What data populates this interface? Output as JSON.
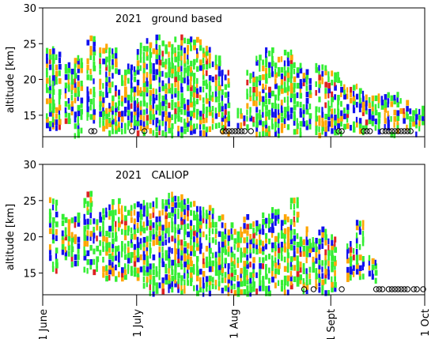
{
  "palette": {
    "green": "#33ee33",
    "blue": "#1111ee",
    "orange": "#ffa500",
    "red": "#dd2222",
    "frame": "#000000"
  },
  "chart_data": [
    {
      "type": "heatmap",
      "title": "2021   ground based",
      "xlabel": "",
      "ylabel": "altitude [km]",
      "xlim": [
        "2021-06-01",
        "2021-10-01"
      ],
      "ylim": [
        12,
        30
      ],
      "yticks": [
        15,
        20,
        25,
        30
      ],
      "xticks": [
        "2021-06-01",
        "2021-07-01",
        "2021-08-01",
        "2021-09-01",
        "2021-10-01"
      ],
      "xtick_labels": [
        "",
        "",
        "",
        "",
        ""
      ],
      "grid": false,
      "colors": [
        "green",
        "blue",
        "orange",
        "red"
      ],
      "observations": [
        {
          "date": "2021-06-02",
          "bottom": 13,
          "top": 24.5
        },
        {
          "date": "2021-06-04",
          "bottom": 13,
          "top": 24
        },
        {
          "date": "2021-06-08",
          "bottom": 14,
          "top": 22
        },
        {
          "date": "2021-06-11",
          "bottom": 12,
          "top": 23
        },
        {
          "date": "2021-06-15",
          "bottom": 14,
          "top": 26
        },
        {
          "date": "2021-06-19",
          "bottom": 13,
          "top": 24.5
        },
        {
          "date": "2021-06-22",
          "bottom": 12,
          "top": 24.5
        },
        {
          "date": "2021-06-25",
          "bottom": 12,
          "top": 21
        },
        {
          "date": "2021-06-28",
          "bottom": 13,
          "top": 22
        },
        {
          "date": "2021-07-01",
          "bottom": 12,
          "top": 25
        },
        {
          "date": "2021-07-04",
          "bottom": 12,
          "top": 25.5
        },
        {
          "date": "2021-07-07",
          "bottom": 12,
          "top": 26
        },
        {
          "date": "2021-07-10",
          "bottom": 12,
          "top": 25
        },
        {
          "date": "2021-07-13",
          "bottom": 12,
          "top": 26
        },
        {
          "date": "2021-07-16",
          "bottom": 12,
          "top": 26
        },
        {
          "date": "2021-07-19",
          "bottom": 12,
          "top": 25.5
        },
        {
          "date": "2021-07-22",
          "bottom": 12,
          "top": 25
        },
        {
          "date": "2021-07-25",
          "bottom": 13,
          "top": 23
        },
        {
          "date": "2021-07-28",
          "bottom": 12,
          "top": 21
        },
        {
          "date": "2021-08-02",
          "bottom": 13,
          "top": 16
        },
        {
          "date": "2021-08-05",
          "bottom": 13,
          "top": 21
        },
        {
          "date": "2021-08-08",
          "bottom": 12,
          "top": 23
        },
        {
          "date": "2021-08-11",
          "bottom": 12,
          "top": 24
        },
        {
          "date": "2021-08-14",
          "bottom": 12,
          "top": 23
        },
        {
          "date": "2021-08-17",
          "bottom": 13,
          "top": 24
        },
        {
          "date": "2021-08-20",
          "bottom": 12,
          "top": 22
        },
        {
          "date": "2021-08-23",
          "bottom": 13,
          "top": 21
        },
        {
          "date": "2021-08-27",
          "bottom": 12,
          "top": 22
        },
        {
          "date": "2021-08-30",
          "bottom": 12,
          "top": 22
        },
        {
          "date": "2021-09-02",
          "bottom": 12,
          "top": 21
        },
        {
          "date": "2021-09-05",
          "bottom": 13,
          "top": 19
        },
        {
          "date": "2021-09-08",
          "bottom": 12,
          "top": 19
        },
        {
          "date": "2021-09-11",
          "bottom": 12,
          "top": 18
        },
        {
          "date": "2021-09-14",
          "bottom": 12,
          "top": 18
        },
        {
          "date": "2021-09-17",
          "bottom": 13,
          "top": 18
        },
        {
          "date": "2021-09-20",
          "bottom": 12,
          "top": 18
        },
        {
          "date": "2021-09-23",
          "bottom": 13,
          "top": 17
        },
        {
          "date": "2021-09-26",
          "bottom": 12,
          "top": 16
        },
        {
          "date": "2021-09-29",
          "bottom": 13,
          "top": 16
        }
      ],
      "no_data_dates": [
        "2021-06-16",
        "2021-06-17",
        "2021-06-29",
        "2021-07-03",
        "2021-07-28",
        "2021-07-29",
        "2021-07-30",
        "2021-07-31",
        "2021-08-01",
        "2021-08-02",
        "2021-08-03",
        "2021-08-04",
        "2021-08-06",
        "2021-09-03",
        "2021-09-04",
        "2021-09-11",
        "2021-09-12",
        "2021-09-13",
        "2021-09-17",
        "2021-09-18",
        "2021-09-19",
        "2021-09-20",
        "2021-09-21",
        "2021-09-22",
        "2021-09-23",
        "2021-09-24",
        "2021-09-25",
        "2021-09-26"
      ]
    },
    {
      "type": "heatmap",
      "title": "2021   CALIOP",
      "xlabel": "",
      "ylabel": "altitude [km]",
      "xlim": [
        "2021-06-01",
        "2021-10-01"
      ],
      "ylim": [
        12,
        30
      ],
      "yticks": [
        15,
        20,
        25,
        30
      ],
      "xticks": [
        "2021-06-01",
        "2021-07-01",
        "2021-08-01",
        "2021-09-01",
        "2021-10-01"
      ],
      "xtick_labels": [
        "1 June",
        "1 July",
        "1 Aug",
        "1 Sept",
        "1 Oct"
      ],
      "grid": false,
      "colors": [
        "green",
        "blue",
        "orange",
        "red"
      ],
      "observations": [
        {
          "date": "2021-06-03",
          "bottom": 15,
          "top": 25
        },
        {
          "date": "2021-06-07",
          "bottom": 17,
          "top": 23
        },
        {
          "date": "2021-06-10",
          "bottom": 16,
          "top": 23
        },
        {
          "date": "2021-06-14",
          "bottom": 15,
          "top": 26
        },
        {
          "date": "2021-06-17",
          "bottom": 15,
          "top": 24
        },
        {
          "date": "2021-06-20",
          "bottom": 14,
          "top": 24
        },
        {
          "date": "2021-06-23",
          "bottom": 14,
          "top": 25
        },
        {
          "date": "2021-06-26",
          "bottom": 14,
          "top": 24
        },
        {
          "date": "2021-06-29",
          "bottom": 14,
          "top": 25
        },
        {
          "date": "2021-07-02",
          "bottom": 13,
          "top": 25
        },
        {
          "date": "2021-07-05",
          "bottom": 12,
          "top": 26
        },
        {
          "date": "2021-07-08",
          "bottom": 12,
          "top": 25
        },
        {
          "date": "2021-07-11",
          "bottom": 12,
          "top": 26
        },
        {
          "date": "2021-07-14",
          "bottom": 12,
          "top": 26
        },
        {
          "date": "2021-07-17",
          "bottom": 12,
          "top": 25
        },
        {
          "date": "2021-07-20",
          "bottom": 12,
          "top": 24
        },
        {
          "date": "2021-07-23",
          "bottom": 12,
          "top": 24
        },
        {
          "date": "2021-07-26",
          "bottom": 12,
          "top": 23
        },
        {
          "date": "2021-07-29",
          "bottom": 12,
          "top": 22
        },
        {
          "date": "2021-08-01",
          "bottom": 12,
          "top": 21
        },
        {
          "date": "2021-08-04",
          "bottom": 12,
          "top": 23
        },
        {
          "date": "2021-08-07",
          "bottom": 12,
          "top": 22
        },
        {
          "date": "2021-08-10",
          "bottom": 12,
          "top": 23
        },
        {
          "date": "2021-08-13",
          "bottom": 13,
          "top": 24
        },
        {
          "date": "2021-08-16",
          "bottom": 12,
          "top": 23
        },
        {
          "date": "2021-08-19",
          "bottom": 13,
          "top": 25
        },
        {
          "date": "2021-08-22",
          "bottom": 12,
          "top": 21
        },
        {
          "date": "2021-08-25",
          "bottom": 13,
          "top": 20
        },
        {
          "date": "2021-08-28",
          "bottom": 12,
          "top": 21
        },
        {
          "date": "2021-08-31",
          "bottom": 12,
          "top": 20
        },
        {
          "date": "2021-09-06",
          "bottom": 14,
          "top": 19
        },
        {
          "date": "2021-09-09",
          "bottom": 14,
          "top": 22
        },
        {
          "date": "2021-09-13",
          "bottom": 13,
          "top": 17
        }
      ],
      "no_data_dates": [
        "2021-08-23",
        "2021-08-26",
        "2021-09-04",
        "2021-09-15",
        "2021-09-16",
        "2021-09-17",
        "2021-09-19",
        "2021-09-20",
        "2021-09-21",
        "2021-09-22",
        "2021-09-23",
        "2021-09-24",
        "2021-09-25",
        "2021-09-27",
        "2021-09-28",
        "2021-09-30"
      ]
    }
  ]
}
